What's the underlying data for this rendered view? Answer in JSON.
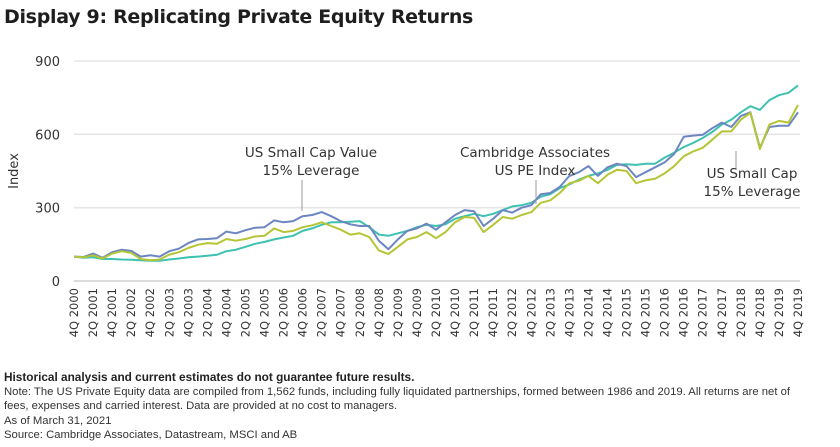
{
  "title": "Display 9: Replicating Private Equity Returns",
  "chart_data": {
    "type": "line",
    "title": "Display 9: Replicating Private Equity Returns",
    "xlabel": "",
    "ylabel": "Index",
    "ylim": [
      0,
      900
    ],
    "yticks": [
      0,
      300,
      600,
      900
    ],
    "grid": true,
    "x": [
      "4Q 2000",
      "1Q 2001",
      "2Q 2001",
      "3Q 2001",
      "4Q 2001",
      "1Q 2002",
      "2Q 2002",
      "3Q 2002",
      "4Q 2002",
      "1Q 2003",
      "2Q 2003",
      "3Q 2003",
      "4Q 2003",
      "1Q 2004",
      "2Q 2004",
      "3Q 2004",
      "4Q 2004",
      "1Q 2005",
      "2Q 2005",
      "3Q 2005",
      "4Q 2005",
      "1Q 2006",
      "2Q 2006",
      "3Q 2006",
      "4Q 2006",
      "1Q 2007",
      "2Q 2007",
      "3Q 2007",
      "4Q 2007",
      "1Q 2008",
      "2Q 2008",
      "3Q 2008",
      "4Q 2008",
      "1Q 2009",
      "2Q 2009",
      "3Q 2009",
      "4Q 2009",
      "1Q 2010",
      "2Q 2010",
      "3Q 2010",
      "4Q 2010",
      "1Q 2011",
      "2Q 2011",
      "3Q 2011",
      "4Q 2011",
      "1Q 2012",
      "2Q 2012",
      "3Q 2012",
      "4Q 2012",
      "1Q 2013",
      "2Q 2013",
      "3Q 2013",
      "4Q 2013",
      "1Q 2014",
      "2Q 2014",
      "3Q 2014",
      "4Q 2014",
      "1Q 2015",
      "2Q 2015",
      "3Q 2015",
      "4Q 2015",
      "1Q 2016",
      "2Q 2016",
      "3Q 2016",
      "4Q 2016",
      "1Q 2017",
      "2Q 2017",
      "3Q 2017",
      "4Q 2017",
      "1Q 2018",
      "2Q 2018",
      "3Q 2018",
      "4Q 2018",
      "1Q 2019",
      "2Q 2019",
      "3Q 2019",
      "4Q 2019"
    ],
    "xtick_labels": [
      "4Q 2000",
      "2Q 2001",
      "4Q 2001",
      "2Q 2002",
      "4Q 2002",
      "2Q 2003",
      "4Q 2003",
      "2Q 2004",
      "4Q 2004",
      "2Q 2005",
      "4Q 2005",
      "2Q 2006",
      "4Q 2006",
      "2Q 2007",
      "4Q 2007",
      "2Q 2008",
      "4Q 2008",
      "2Q 2009",
      "4Q 2009",
      "2Q 2010",
      "4Q 2010",
      "2Q 2011",
      "4Q 2011",
      "2Q 2012",
      "4Q 2012",
      "2Q 2013",
      "4Q 2013",
      "2Q 2014",
      "4Q 2014",
      "2Q 2015",
      "4Q 2015",
      "2Q 2016",
      "4Q 2016",
      "2Q 2017",
      "4Q 2017",
      "2Q 2018",
      "4Q 2018",
      "2Q 2019",
      "4Q 2019"
    ],
    "series": [
      {
        "name": "Cambridge Associates US PE Index",
        "color": "#3fc1b0",
        "values": [
          100,
          95,
          97,
          90,
          90,
          88,
          87,
          85,
          83,
          83,
          88,
          92,
          97,
          100,
          103,
          107,
          122,
          128,
          140,
          152,
          160,
          170,
          178,
          185,
          205,
          215,
          230,
          240,
          240,
          242,
          245,
          220,
          190,
          185,
          195,
          205,
          220,
          230,
          225,
          232,
          255,
          265,
          275,
          265,
          275,
          290,
          305,
          310,
          320,
          345,
          355,
          380,
          395,
          415,
          430,
          440,
          455,
          475,
          478,
          475,
          480,
          480,
          505,
          525,
          548,
          565,
          585,
          610,
          640,
          660,
          690,
          715,
          700,
          740,
          760,
          770,
          800
        ]
      },
      {
        "name": "US Small Cap Value 15% Leverage",
        "color": "#6b86c0",
        "values": [
          100,
          98,
          112,
          95,
          118,
          128,
          123,
          100,
          105,
          100,
          122,
          132,
          155,
          170,
          172,
          175,
          202,
          195,
          208,
          218,
          220,
          248,
          240,
          245,
          265,
          270,
          282,
          265,
          245,
          232,
          225,
          225,
          165,
          130,
          170,
          205,
          215,
          235,
          210,
          240,
          270,
          290,
          285,
          225,
          255,
          290,
          280,
          300,
          310,
          355,
          360,
          385,
          430,
          445,
          470,
          430,
          465,
          480,
          470,
          425,
          445,
          465,
          485,
          520,
          590,
          595,
          598,
          625,
          648,
          630,
          675,
          690,
          545,
          630,
          635,
          635,
          690
        ]
      },
      {
        "name": "US Small Cap 15% Leverage",
        "color": "#b5c535",
        "values": [
          100,
          97,
          105,
          92,
          112,
          122,
          115,
          90,
          85,
          88,
          108,
          118,
          135,
          148,
          155,
          152,
          172,
          165,
          172,
          182,
          185,
          215,
          200,
          205,
          220,
          228,
          240,
          225,
          210,
          190,
          195,
          180,
          125,
          110,
          140,
          170,
          180,
          200,
          175,
          200,
          240,
          262,
          258,
          200,
          230,
          262,
          255,
          270,
          282,
          320,
          330,
          360,
          400,
          410,
          430,
          400,
          435,
          455,
          450,
          400,
          412,
          418,
          440,
          470,
          510,
          530,
          545,
          578,
          612,
          612,
          660,
          688,
          540,
          640,
          655,
          648,
          720
        ]
      }
    ],
    "annotations": [
      {
        "lines": [
          "US Small Cap Value",
          "15% Leverage"
        ],
        "series": "US Small Cap Value 15% Leverage",
        "x": "2Q 2007"
      },
      {
        "lines": [
          "Cambridge Associates",
          "US PE Index"
        ],
        "series": "Cambridge Associates US PE Index",
        "x": "2Q 2012"
      },
      {
        "lines": [
          "US Small Cap",
          "15% Leverage"
        ],
        "series": "US Small Cap 15% Leverage",
        "x": "1Q 2017"
      }
    ]
  },
  "footer": {
    "disclaimer": "Historical analysis and current estimates do not guarantee future results.",
    "note_line1": "Note: The US Private Equity data are compiled from 1,562 funds, including fully liquidated partnerships, formed between 1986 and 2019. All returns are net of",
    "note_line2": "fees, expenses and carried interest. Data are provided at no cost to managers.",
    "as_of": "As of March 31, 2021",
    "source": "Source: Cambridge Associates, Datastream, MSCI and AB"
  }
}
